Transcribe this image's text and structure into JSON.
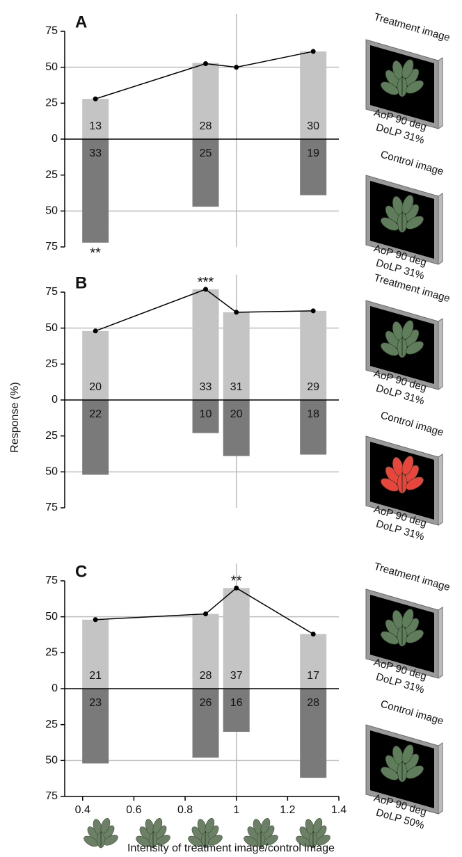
{
  "chart_data": [
    {
      "type": "bar",
      "letter": "A",
      "x": [
        0.45,
        0.88,
        1.0,
        1.3
      ],
      "series": [
        {
          "type": "bar",
          "color": "#c4c4c4",
          "values": [
            28,
            53,
            null,
            61
          ],
          "counts": [
            13,
            28,
            null,
            30
          ],
          "significance": [
            null,
            null,
            null,
            null
          ]
        },
        {
          "type": "bar",
          "color": "#7a7a7a",
          "values": [
            -72,
            -47,
            null,
            -39
          ],
          "counts": [
            33,
            25,
            null,
            19
          ],
          "significance": [
            "**",
            null,
            null,
            null
          ]
        },
        {
          "type": "line",
          "color": "#000000",
          "values": [
            28,
            52.5,
            50,
            61
          ]
        }
      ],
      "xlim": [
        0.33,
        1.4
      ],
      "ylim": [
        -75,
        75
      ],
      "yticks": [
        75,
        50,
        25,
        0,
        {
          "value": -25,
          "label": "25"
        },
        {
          "value": -50,
          "label": "50"
        },
        {
          "value": -75,
          "label": "75"
        }
      ],
      "gridlines": [
        50,
        -50
      ],
      "vline": 1,
      "images": [
        {
          "label": "Treatment image",
          "aop": "AoP 90 deg",
          "dolp": "DoLP 31%",
          "plant_color": "#5f7d5a"
        },
        {
          "label": "Control image",
          "aop": "AoP 90 deg",
          "dolp": "DoLP 31%",
          "plant_color": "#5f7d5a"
        }
      ]
    },
    {
      "type": "bar",
      "letter": "B",
      "ylabel": "Response (%)",
      "x": [
        0.45,
        0.88,
        1.0,
        1.3
      ],
      "series": [
        {
          "type": "bar",
          "color": "#c4c4c4",
          "values": [
            48,
            77,
            61,
            62
          ],
          "counts": [
            20,
            33,
            31,
            29
          ],
          "significance": [
            null,
            "***",
            null,
            null
          ]
        },
        {
          "type": "bar",
          "color": "#7a7a7a",
          "values": [
            -52,
            -23,
            -39,
            -38
          ],
          "counts": [
            22,
            10,
            20,
            18
          ],
          "significance": [
            null,
            null,
            null,
            null
          ]
        },
        {
          "type": "line",
          "color": "#000000",
          "values": [
            48,
            77,
            61,
            62
          ]
        }
      ],
      "xlim": [
        0.33,
        1.4
      ],
      "ylim": [
        -75,
        75
      ],
      "yticks": [
        75,
        50,
        25,
        0,
        {
          "value": -25,
          "label": "25"
        },
        {
          "value": -50,
          "label": "50"
        },
        {
          "value": -75,
          "label": "75"
        }
      ],
      "gridlines": [
        50,
        -50
      ],
      "vline": 1,
      "images": [
        {
          "label": "Treatment image",
          "aop": "AoP 90 deg",
          "dolp": "DoLP 31%",
          "plant_color": "#5f7d5a"
        },
        {
          "label": "Control image",
          "aop": "AoP 90 deg",
          "dolp": "DoLP 31%",
          "plant_color": "#e8463c"
        }
      ]
    },
    {
      "type": "bar",
      "letter": "C",
      "xlabel": "Intensity of treatment image/control image",
      "x": [
        0.45,
        0.88,
        1.0,
        1.3
      ],
      "series": [
        {
          "type": "bar",
          "color": "#c4c4c4",
          "values": [
            48,
            52,
            70,
            38
          ],
          "counts": [
            21,
            28,
            37,
            17
          ],
          "significance": [
            null,
            null,
            "**",
            null
          ]
        },
        {
          "type": "bar",
          "color": "#7a7a7a",
          "values": [
            -52,
            -48,
            -30,
            -62
          ],
          "counts": [
            23,
            26,
            16,
            28
          ],
          "significance": [
            null,
            null,
            null,
            null
          ]
        },
        {
          "type": "line",
          "color": "#000000",
          "values": [
            48,
            52,
            70,
            38
          ]
        }
      ],
      "xlim": [
        0.33,
        1.4
      ],
      "ylim": [
        -75,
        75
      ],
      "xticks": [
        0.4,
        0.6,
        0.8,
        1,
        1.2,
        1.4
      ],
      "yticks": [
        75,
        50,
        25,
        0,
        {
          "value": -25,
          "label": "25"
        },
        {
          "value": -50,
          "label": "50"
        },
        {
          "value": -75,
          "label": "75"
        }
      ],
      "gridlines": [
        50,
        -50
      ],
      "vline": 1,
      "images": [
        {
          "label": "Treatment image",
          "aop": "AoP 90 deg",
          "dolp": "DoLP 31%",
          "plant_color": "#5f7d5a"
        },
        {
          "label": "Control image",
          "aop": "AoP 90 deg",
          "dolp": "DoLP 50%",
          "plant_color": "#5f7d5a"
        }
      ]
    }
  ]
}
